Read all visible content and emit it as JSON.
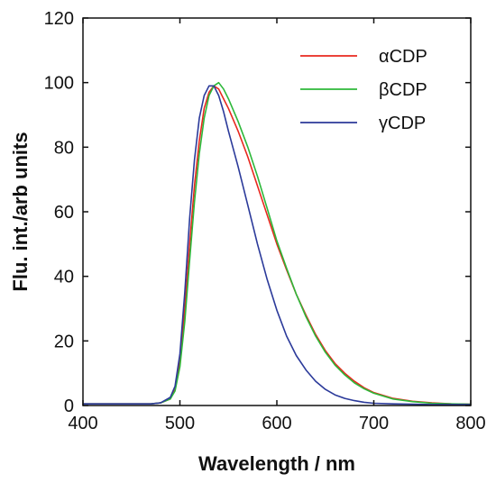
{
  "chart_data": {
    "type": "line",
    "title": "",
    "xlabel": "Wavelength / nm",
    "ylabel": "Flu. int./arb units",
    "xlim": [
      400,
      800
    ],
    "ylim": [
      0,
      120
    ],
    "xticks": [
      400,
      500,
      600,
      700,
      800
    ],
    "yticks": [
      0,
      20,
      40,
      60,
      80,
      100,
      120
    ],
    "grid": false,
    "legend_position": "top-right",
    "series": [
      {
        "name": "αCDP",
        "color": "#e8281e",
        "x": [
          400,
          470,
          480,
          490,
          495,
          500,
          505,
          510,
          515,
          520,
          525,
          530,
          535,
          540,
          545,
          550,
          560,
          570,
          580,
          590,
          600,
          610,
          620,
          630,
          640,
          650,
          660,
          670,
          680,
          690,
          700,
          720,
          740,
          760,
          780,
          800
        ],
        "y": [
          0.5,
          0.5,
          0.8,
          2,
          5,
          14,
          30,
          50,
          68,
          82,
          92,
          97,
          99,
          98,
          95,
          92,
          85,
          77,
          68,
          59,
          50,
          42,
          34.5,
          28,
          22,
          17,
          13,
          10,
          7.5,
          5.5,
          4,
          2.2,
          1.3,
          0.8,
          0.5,
          0.4
        ]
      },
      {
        "name": "βCDP",
        "color": "#2db83a",
        "x": [
          400,
          470,
          480,
          490,
          495,
          500,
          505,
          510,
          515,
          520,
          525,
          530,
          535,
          540,
          545,
          550,
          560,
          570,
          580,
          590,
          600,
          610,
          620,
          630,
          640,
          650,
          660,
          670,
          680,
          690,
          700,
          720,
          740,
          760,
          780,
          800
        ],
        "y": [
          0.5,
          0.5,
          0.8,
          2,
          4.5,
          12,
          26,
          45,
          63,
          78,
          89,
          96,
          99,
          100,
          98,
          95,
          88,
          80,
          71,
          61,
          51,
          42.5,
          34.5,
          27.5,
          21.5,
          16.5,
          12.5,
          9.5,
          7,
          5.2,
          3.8,
          2,
          1.2,
          0.7,
          0.5,
          0.4
        ]
      },
      {
        "name": "γCDP",
        "color": "#2b3a9a",
        "x": [
          400,
          470,
          480,
          490,
          495,
          500,
          505,
          510,
          515,
          520,
          525,
          530,
          535,
          540,
          545,
          550,
          560,
          570,
          580,
          590,
          600,
          610,
          620,
          630,
          640,
          650,
          660,
          670,
          680,
          690,
          700,
          720,
          740,
          760,
          780,
          800
        ],
        "y": [
          0.5,
          0.5,
          0.8,
          2.5,
          6,
          16,
          35,
          58,
          76,
          89,
          96,
          99,
          99,
          96,
          91,
          85,
          74,
          62,
          50,
          39,
          29.5,
          21.5,
          15.5,
          11,
          7.5,
          5,
          3.3,
          2.2,
          1.5,
          1,
          0.7,
          0.5,
          0.4,
          0.3,
          0.3,
          0.3
        ]
      }
    ]
  }
}
